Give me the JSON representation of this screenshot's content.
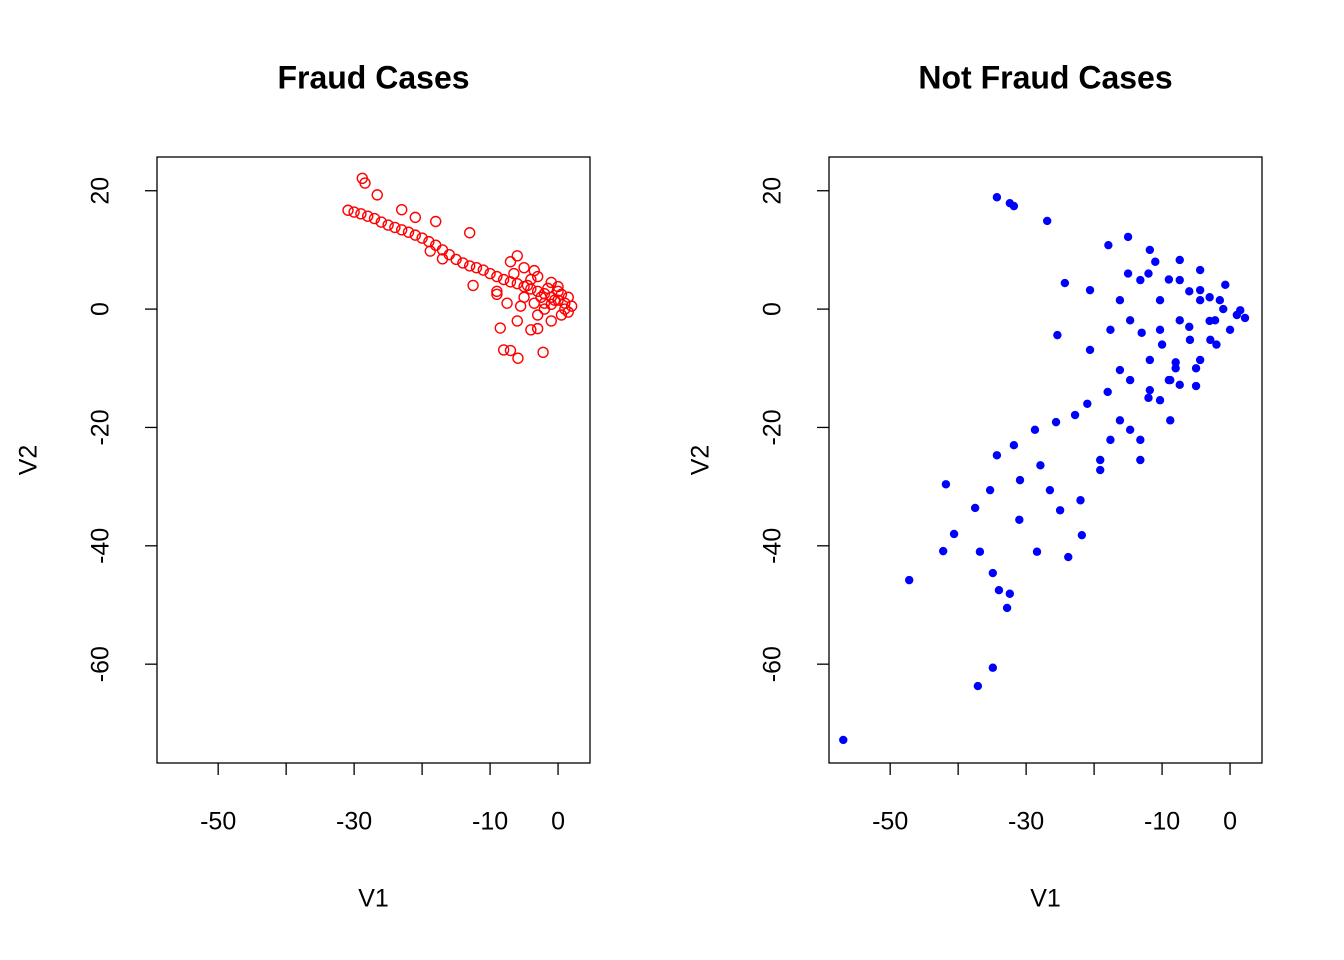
{
  "chart_data": [
    {
      "type": "scatter",
      "title": "Fraud Cases",
      "x_label": "V1",
      "y_label": "V2",
      "xlim": [
        -59,
        4.7
      ],
      "ylim": [
        -76.7,
        25.7
      ],
      "xticks": [
        -50,
        -30,
        -10,
        0
      ],
      "xminorticks": [
        -40,
        -20
      ],
      "yticks": [
        20,
        0,
        -20,
        -40,
        -60
      ],
      "marker": "open",
      "color": "#ff0000",
      "series": [
        {
          "color": "#ff0000",
          "x": [
            -28.8,
            -28.4,
            -30.9,
            -30,
            -29,
            -28,
            -27,
            -26,
            -25,
            -24,
            -23,
            -22,
            -21,
            -20,
            -19,
            -18,
            -17,
            -16,
            -15,
            -14,
            -13,
            -12,
            -11,
            -10,
            -9,
            -8,
            -7,
            -6,
            -5,
            -4,
            -3,
            -2,
            -1,
            0,
            1,
            2,
            -26.6,
            -23,
            -21,
            -18,
            -13,
            -12.5,
            -9,
            -7,
            -6,
            -5,
            -4,
            -3,
            -1,
            -6,
            -8.5,
            -8,
            -7,
            -5.9,
            -2.2,
            -4,
            -3,
            -2,
            0,
            1.5,
            -5.5,
            -9,
            -18.8,
            -17,
            0.5,
            -1,
            -3.5,
            -2.5,
            -1.5,
            -0.5,
            0.5,
            1,
            -4.5,
            -3,
            -2,
            -1,
            0,
            1.5,
            -6.5,
            -5,
            -7.5,
            -3.5
          ],
          "y": [
            22.1,
            21.3,
            16.7,
            16.4,
            16.1,
            15.7,
            15.3,
            14.7,
            14.2,
            13.8,
            13.4,
            13,
            12.5,
            12,
            11.4,
            10.8,
            10,
            9.2,
            8.4,
            7.8,
            7.3,
            7,
            6.6,
            6,
            5.5,
            5,
            4.6,
            4.3,
            3.8,
            3.4,
            3,
            2.6,
            2,
            1.5,
            1,
            0.5,
            19.3,
            16.8,
            15.5,
            14.8,
            12.9,
            4,
            3,
            8,
            9,
            7,
            5,
            -1,
            -2,
            -2,
            -3.2,
            -6.9,
            -7,
            -8.3,
            -7.3,
            -3.5,
            -3.3,
            0,
            3,
            -0.5,
            0.5,
            2.5,
            9.8,
            8.5,
            -1,
            0.8,
            1,
            2,
            3.5,
            1.5,
            2.5,
            0,
            4,
            5.5,
            1,
            4.5,
            3.8,
            2,
            6,
            2,
            1,
            6.5
          ]
        }
      ]
    },
    {
      "type": "scatter",
      "title": "Not Fraud Cases",
      "x_label": "V1",
      "y_label": "V2",
      "xlim": [
        -59,
        4.7
      ],
      "ylim": [
        -76.7,
        25.7
      ],
      "xticks": [
        -50,
        -30,
        -10,
        0
      ],
      "xminorticks": [
        -40,
        -20
      ],
      "yticks": [
        20,
        0,
        -20,
        -40,
        -60
      ],
      "marker": "filled",
      "color": "#0000ff",
      "series": [
        {
          "color": "#0000ff",
          "x": [
            -34.3,
            -32.4,
            -31.8,
            -26.9,
            -56.9,
            -47.2,
            -37.1,
            -34.9,
            -32.8,
            -32.4,
            -34,
            -34.9,
            -42.2,
            -40.6,
            -41.8,
            -36.8,
            -31,
            -28.4,
            -23.8,
            -21.8,
            -31.8,
            -34.3,
            -27.9,
            -26.5,
            -25.6,
            -22.8,
            -19.1,
            -16.2,
            -13.2,
            -11.8,
            -8.8,
            -25.4,
            -24.3,
            -20.6,
            -16.2,
            -17.9,
            -15,
            -11.8,
            -7.4,
            -4.4,
            -0.7,
            1.5,
            2.2,
            0,
            -4.4,
            -7.4,
            -10.3,
            -14.7,
            -17.6,
            -19.1,
            -13.2,
            -8.8,
            -20.6,
            -17.6,
            -14.7,
            -10.3,
            -7.4,
            -4.4,
            -2.2,
            -5.9,
            -11.8,
            -14.7,
            -16.2,
            -4.4,
            -13.2,
            -10.3,
            -7.4,
            -2.9,
            -1.5,
            -37.5,
            -35.3,
            -30.9,
            -25,
            -22,
            -28.7,
            -12,
            -9,
            -6,
            -3,
            -1,
            1,
            -13,
            -10,
            -8,
            -5,
            -2,
            -12,
            -9,
            -6,
            -11,
            -15,
            -18,
            -21,
            -8,
            -5,
            -3
          ],
          "y": [
            18.9,
            17.9,
            17.4,
            14.9,
            -72.8,
            -45.8,
            -63.7,
            -60.6,
            -50.5,
            -48.1,
            -47.5,
            -44.6,
            -40.9,
            -38,
            -29.6,
            -41,
            -35.6,
            -41,
            -41.9,
            -38.2,
            -23,
            -24.7,
            -26.4,
            -30.6,
            -19.1,
            -17.9,
            -25.5,
            -18.8,
            -22.1,
            -13.7,
            -12,
            -4.4,
            4.4,
            3.2,
            1.5,
            10.8,
            12.2,
            10,
            8.3,
            6.6,
            4.1,
            -0.2,
            -1.5,
            -3.5,
            -8.6,
            -12.8,
            -15.4,
            -20.4,
            -22.1,
            -27.2,
            -25.5,
            -18.8,
            -6.9,
            -3.5,
            -1.9,
            1.5,
            4.9,
            1.5,
            -1.9,
            -5.2,
            -8.6,
            -12,
            -10.3,
            3.2,
            4.9,
            -3.5,
            -1.9,
            -5.2,
            1.5,
            -33.6,
            -30.6,
            -28.9,
            -34,
            -32.3,
            -20.4,
            6,
            5,
            3,
            2,
            0,
            -1,
            -4,
            -6,
            -9,
            -10,
            -6,
            -15,
            -12,
            -3,
            8,
            6,
            -14,
            -16,
            -10,
            -13,
            -2
          ]
        }
      ]
    }
  ]
}
